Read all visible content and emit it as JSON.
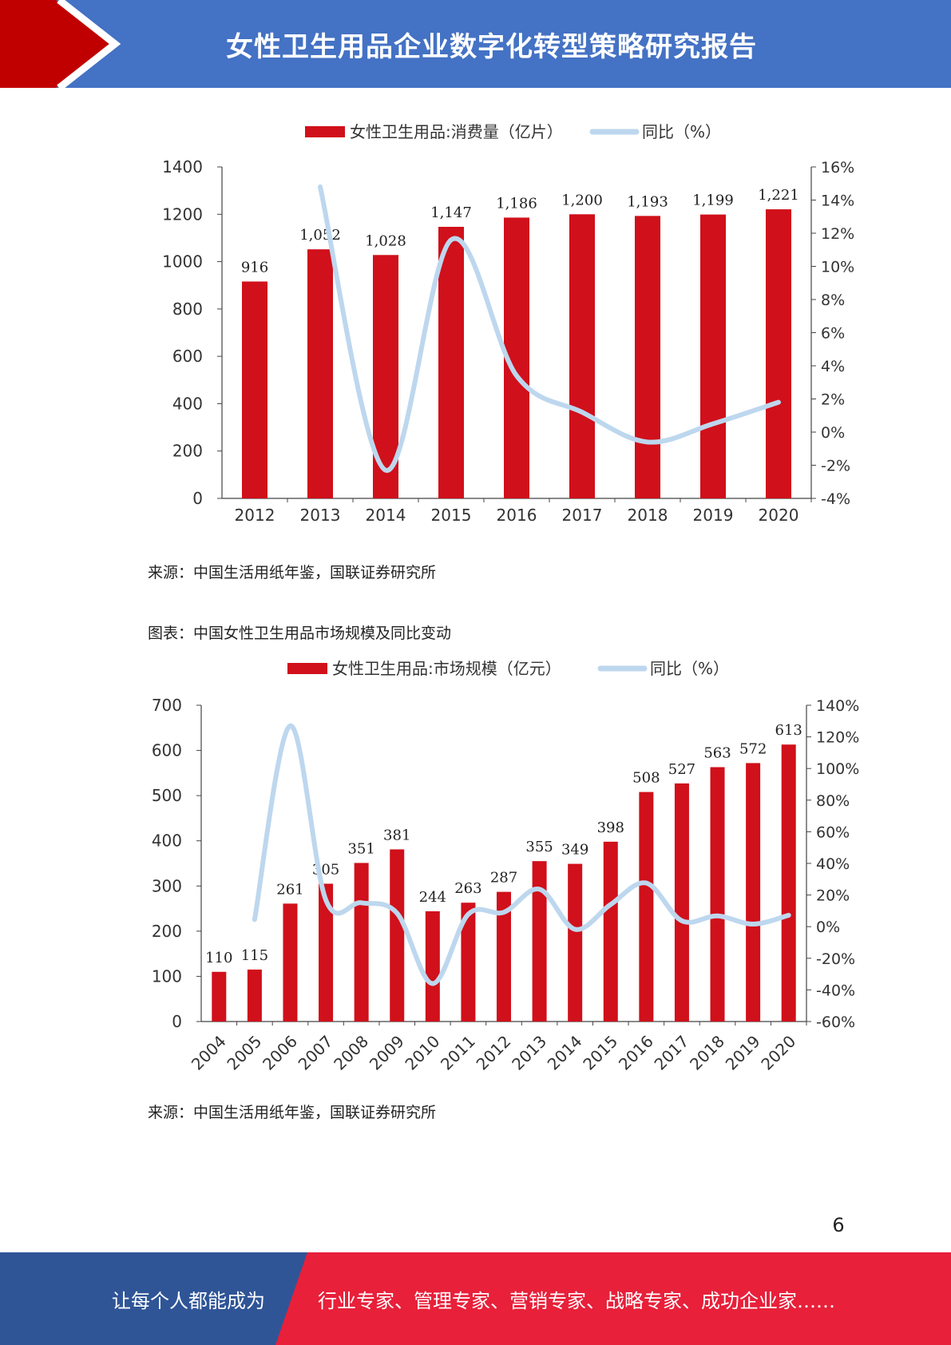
{
  "header": {
    "title": "女性卫生用品企业数字化转型策略研究报告"
  },
  "colors": {
    "header_bg": "#4472c4",
    "header_arrow": "#c00000",
    "bar": "#d0101a",
    "line": "#bdd7ee",
    "footer_left": "#2f5597",
    "footer_right": "#e8203a"
  },
  "chart_data": [
    {
      "type": "bar",
      "legend": {
        "bar": "女性卫生用品:消费量（亿片）",
        "line": "同比（%）",
        "placement": "top"
      },
      "categories": [
        "2012",
        "2013",
        "2014",
        "2015",
        "2016",
        "2017",
        "2018",
        "2019",
        "2020"
      ],
      "series": [
        {
          "name": "女性卫生用品:消费量（亿片）",
          "type": "bar",
          "axis": "left",
          "values": [
            916,
            1052,
            1028,
            1147,
            1186,
            1200,
            1193,
            1199,
            1221
          ],
          "labels": [
            "916",
            "1,052",
            "1,028",
            "1,147",
            "1,186",
            "1,200",
            "1,193",
            "1,199",
            "1,221"
          ]
        },
        {
          "name": "同比（%）",
          "type": "line",
          "axis": "right",
          "values": [
            null,
            14.8,
            -2.3,
            11.6,
            3.4,
            1.2,
            -0.6,
            0.5,
            1.8
          ]
        }
      ],
      "y_left": {
        "min": 0,
        "max": 1400,
        "ticks": [
          "0",
          "200",
          "400",
          "600",
          "800",
          "1000",
          "1200",
          "1400"
        ]
      },
      "y_right": {
        "min": -4,
        "max": 16,
        "ticks": [
          "-4%",
          "-2%",
          "0%",
          "2%",
          "4%",
          "6%",
          "8%",
          "10%",
          "12%",
          "14%",
          "16%"
        ]
      },
      "grid": false
    },
    {
      "type": "bar",
      "legend": {
        "bar": "女性卫生用品:市场规模（亿元）",
        "line": "同比（%）",
        "placement": "top"
      },
      "categories": [
        "2004",
        "2005",
        "2006",
        "2007",
        "2008",
        "2009",
        "2010",
        "2011",
        "2012",
        "2013",
        "2014",
        "2015",
        "2016",
        "2017",
        "2018",
        "2019",
        "2020"
      ],
      "series": [
        {
          "name": "女性卫生用品:市场规模（亿元）",
          "type": "bar",
          "axis": "left",
          "values": [
            110,
            115,
            261,
            305,
            351,
            381,
            244,
            263,
            287,
            355,
            349,
            398,
            508,
            527,
            563,
            572,
            613
          ],
          "labels": [
            "110",
            "115",
            "261",
            "305",
            "351",
            "381",
            "244",
            "263",
            "287",
            "355",
            "349",
            "398",
            "508",
            "527",
            "563",
            "572",
            "613"
          ]
        },
        {
          "name": "同比（%）",
          "type": "line",
          "axis": "right",
          "values": [
            null,
            4.5,
            127,
            16.9,
            15.1,
            8.5,
            -36,
            7.8,
            9.1,
            23.7,
            -1.7,
            14,
            27.6,
            3.7,
            6.8,
            1.6,
            7.2
          ]
        }
      ],
      "y_left": {
        "min": 0,
        "max": 700,
        "ticks": [
          "0",
          "100",
          "200",
          "300",
          "400",
          "500",
          "600",
          "700"
        ]
      },
      "y_right": {
        "min": -60,
        "max": 140,
        "ticks": [
          "-60%",
          "-40%",
          "-20%",
          "0%",
          "20%",
          "40%",
          "60%",
          "80%",
          "100%",
          "120%",
          "140%"
        ]
      },
      "grid": false,
      "x_label_rotation": -45
    }
  ],
  "source1": "来源：中国生活用纸年鉴，国联证券研究所",
  "caption2": "图表：中国女性卫生用品市场规模及同比变动",
  "source2": "来源：中国生活用纸年鉴，国联证券研究所",
  "page_number": "6",
  "footer": {
    "left_text": "让每个人都能成为",
    "right_text": "行业专家、管理专家、营销专家、战略专家、成功企业家……"
  }
}
